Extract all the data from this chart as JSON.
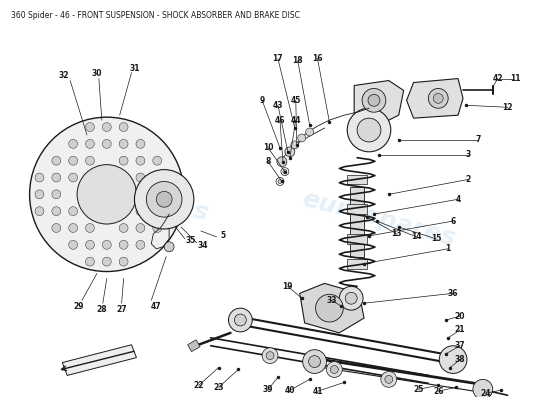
{
  "title": "360 Spider - 46 - FRONT SUSPENSION - SHOCK ABSORBER AND BRAKE DISC",
  "title_fontsize": 5.5,
  "bg_color": "#ffffff",
  "line_color": "#1a1a1a",
  "watermark_color": "#c8dff0",
  "watermark_alpha": 0.45
}
